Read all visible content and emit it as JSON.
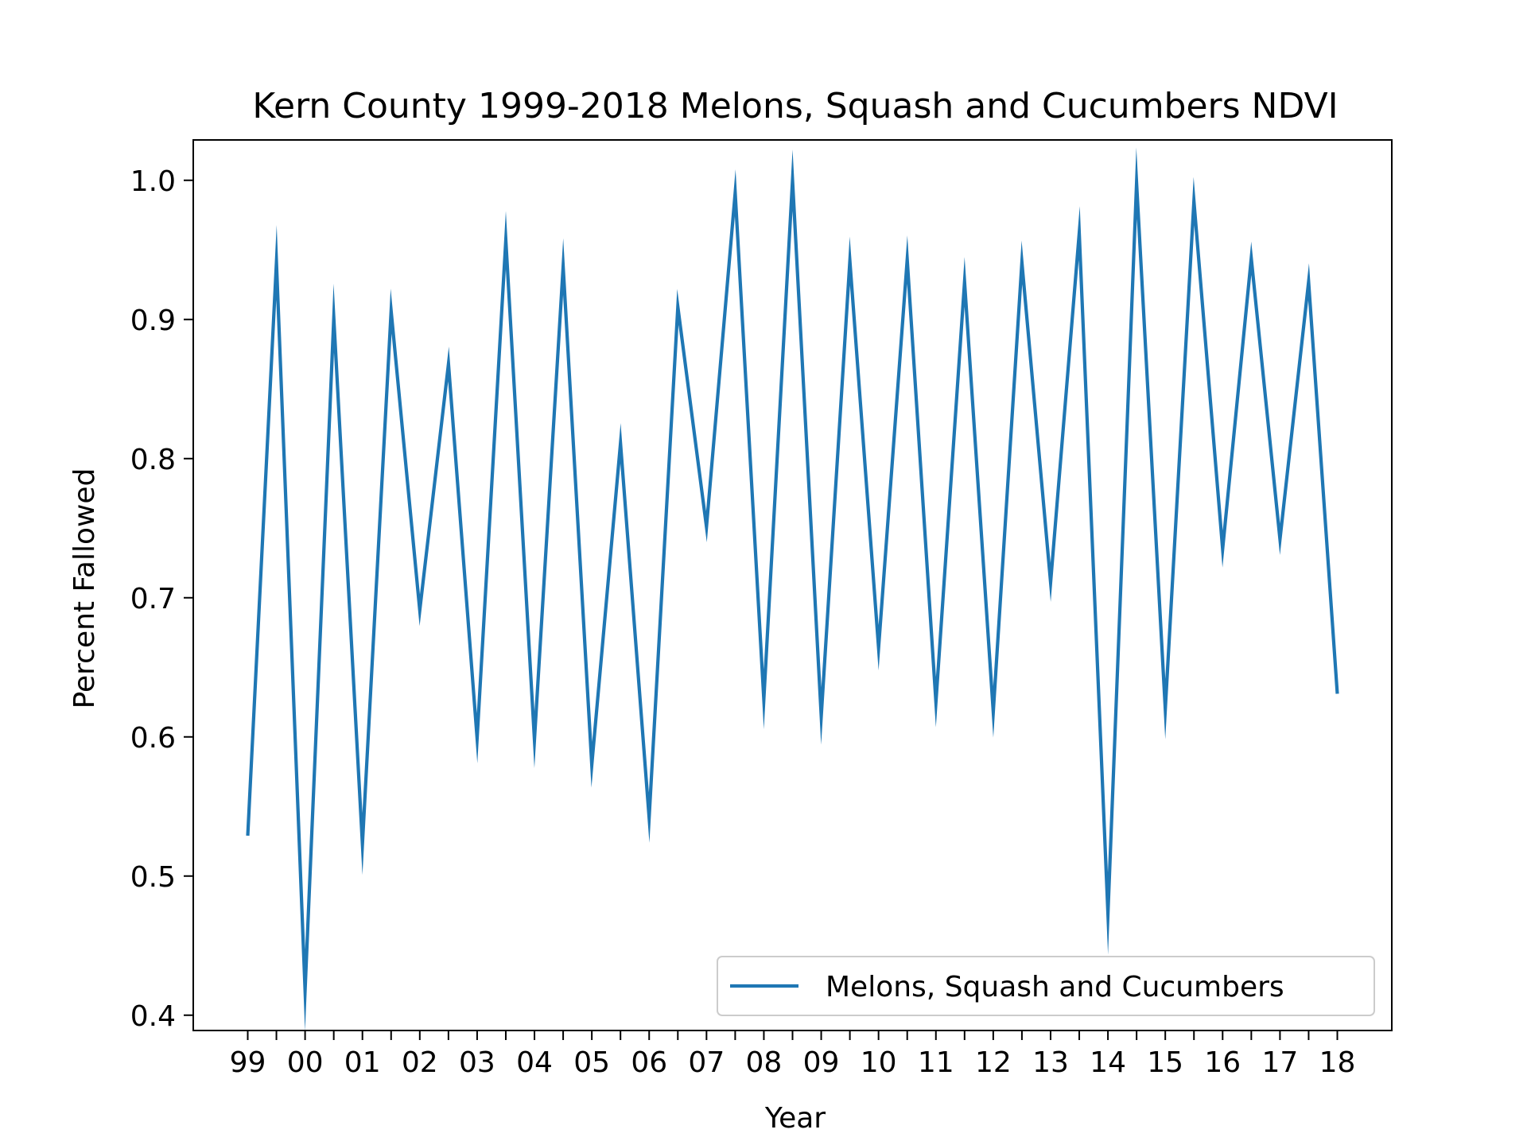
{
  "chart_data": {
    "type": "line",
    "title": "Kern County 1999-2018 Melons, Squash and Cucumbers NDVI",
    "xlabel": "Year",
    "ylabel": "Percent Fallowed",
    "x_tick_labels": [
      "99",
      "00",
      "01",
      "02",
      "03",
      "04",
      "05",
      "06",
      "07",
      "08",
      "09",
      "10",
      "11",
      "12",
      "13",
      "14",
      "15",
      "16",
      "17",
      "18"
    ],
    "y_ticks": [
      0.4,
      0.5,
      0.6,
      0.7,
      0.8,
      0.9,
      1.0
    ],
    "y_tick_labels": [
      "0.4",
      "0.5",
      "0.6",
      "0.7",
      "0.8",
      "0.9",
      "1.0"
    ],
    "xlim": [
      1998.05,
      2018.95
    ],
    "ylim": [
      0.389,
      1.029
    ],
    "grid": false,
    "legend_position": "lower-right",
    "series": [
      {
        "name": "Melons, Squash and Cucumbers",
        "color": "#1f77b4",
        "x": [
          1999,
          1999.5,
          2000,
          2000.5,
          2001,
          2001.5,
          2002,
          2002.5,
          2003,
          2003.5,
          2004,
          2004.5,
          2005,
          2005.5,
          2006,
          2006.5,
          2007,
          2007.5,
          2008,
          2008.5,
          2009,
          2009.5,
          2010,
          2010.5,
          2011,
          2011.5,
          2012,
          2012.5,
          2013,
          2013.5,
          2014,
          2014.5,
          2015,
          2015.5,
          2016,
          2016.5,
          2017,
          2017.5,
          2018
        ],
        "values": [
          0.529,
          0.941,
          0.418,
          0.901,
          0.523,
          0.906,
          0.691,
          0.868,
          0.599,
          0.957,
          0.598,
          0.938,
          0.58,
          0.811,
          0.542,
          0.909,
          0.751,
          0.991,
          0.627,
          1.0,
          0.615,
          0.942,
          0.664,
          0.943,
          0.625,
          0.927,
          0.618,
          0.941,
          0.711,
          0.962,
          0.473,
          0.998,
          0.62,
          0.985,
          0.735,
          0.944,
          0.742,
          0.927,
          0.631
        ]
      }
    ]
  }
}
